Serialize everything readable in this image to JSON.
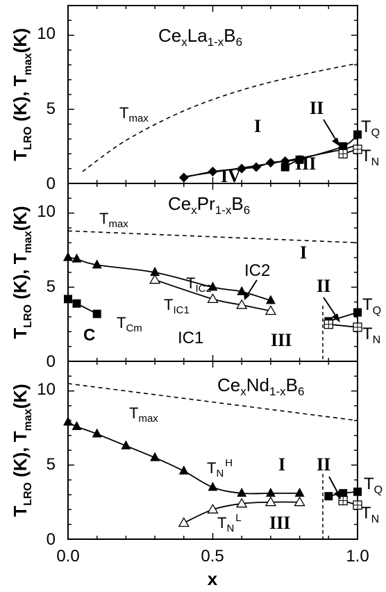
{
  "chart_data": [
    {
      "type": "line",
      "title": "CexLa1-xB6",
      "title_parts": {
        "base1": "Ce",
        "sub1": "x",
        "base2": "La",
        "sub2": "1-x",
        "base3": "B",
        "sub3": "6"
      },
      "ylabel": {
        "p1": "T",
        "s1": "LRO",
        "p2": " (K), T",
        "s2": "max",
        "p3": "(K)"
      },
      "ylim": [
        0,
        12
      ],
      "xlim": [
        0,
        1
      ],
      "yticks": [
        "0",
        "5",
        "10"
      ],
      "series": [
        {
          "name": "T_max",
          "style": "dashed",
          "x": [
            0.05,
            0.2,
            0.4,
            0.6,
            0.8,
            1.0
          ],
          "y": [
            0.8,
            2.9,
            4.9,
            6.3,
            7.3,
            8.1
          ]
        },
        {
          "name": "IV boundary",
          "style": "line",
          "x": [
            0.4,
            0.5,
            0.6,
            0.7,
            0.8,
            0.9,
            0.95,
            1.0
          ],
          "y": [
            0.45,
            0.75,
            1.05,
            1.35,
            1.7,
            2.1,
            2.3,
            2.6
          ]
        },
        {
          "name": "diamond",
          "marker": "diamond-filled",
          "x": [
            0.4,
            0.5,
            0.6,
            0.65,
            0.7,
            0.75,
            0.8
          ],
          "y": [
            0.4,
            0.8,
            1.0,
            1.1,
            1.4,
            1.5,
            1.6
          ]
        },
        {
          "name": "T_Q",
          "marker": "square-filled",
          "x": [
            0.75,
            0.8,
            0.95,
            1.0
          ],
          "y": [
            1.1,
            1.6,
            2.5,
            3.3
          ]
        },
        {
          "name": "T_N",
          "marker": "square-crossed",
          "x": [
            0.95,
            1.0
          ],
          "y": [
            2.0,
            2.3
          ]
        }
      ],
      "labels": {
        "tmax": "T",
        "tmax_sub": "max",
        "I": "I",
        "II": "II",
        "III": "III",
        "IV": "IV",
        "tq": "T",
        "tq_sub": "Q",
        "tn": "T",
        "tn_sub": "N"
      }
    },
    {
      "type": "line",
      "title": "CexPr1-xB6",
      "title_parts": {
        "base1": "Ce",
        "sub1": "x",
        "base2": "Pr",
        "sub2": "1-x",
        "base3": "B",
        "sub3": "6"
      },
      "ylabel": {
        "p1": "T",
        "s1": "LRO",
        "p2": " (K), T",
        "s2": "max",
        "p3": "(K)"
      },
      "ylim": [
        0,
        12
      ],
      "xlim": [
        0,
        1
      ],
      "yticks": [
        "0",
        "5",
        "10"
      ],
      "series": [
        {
          "name": "T_max",
          "style": "dashed",
          "x": [
            0.0,
            1.0
          ],
          "y": [
            8.8,
            8.0
          ]
        },
        {
          "name": "T_IC2",
          "marker": "triangle-filled",
          "x": [
            0.0,
            0.03,
            0.1,
            0.3,
            0.5,
            0.6,
            0.7
          ],
          "y": [
            7.0,
            6.9,
            6.5,
            6.0,
            5.0,
            4.7,
            4.1
          ]
        },
        {
          "name": "T_IC1",
          "marker": "triangle-open",
          "x": [
            0.3,
            0.5,
            0.6,
            0.7
          ],
          "y": [
            5.5,
            4.2,
            3.8,
            3.4
          ]
        },
        {
          "name": "T_Cm",
          "marker": "square-filled",
          "x": [
            0.0,
            0.03,
            0.1
          ],
          "y": [
            4.2,
            3.9,
            3.2
          ]
        },
        {
          "name": "T_Q",
          "marker": "square-filled",
          "x": [
            0.9,
            1.0
          ],
          "y": [
            2.7,
            3.3
          ]
        },
        {
          "name": "T_N",
          "marker": "square-crossed",
          "x": [
            0.9,
            1.0
          ],
          "y": [
            2.5,
            2.3
          ]
        }
      ],
      "labels": {
        "tmax": "T",
        "tmax_sub": "max",
        "tic2": "T",
        "tic2_sub": "IC2",
        "tic1": "T",
        "tic1_sub": "IC1",
        "ic2": "IC2",
        "ic1": "IC1",
        "C": "C",
        "tcm": "T",
        "tcm_sub": "Cm",
        "I": "I",
        "II": "II",
        "III": "III",
        "tq": "T",
        "tq_sub": "Q",
        "tn": "T",
        "tn_sub": "N"
      }
    },
    {
      "type": "line",
      "title": "CexNd1-xB6",
      "title_parts": {
        "base1": "Ce",
        "sub1": "x",
        "base2": "Nd",
        "sub2": "1-x",
        "base3": "B",
        "sub3": "6"
      },
      "ylabel": {
        "p1": "T",
        "s1": "LRO",
        "p2": " (K), T",
        "s2": "max",
        "p3": "(K)"
      },
      "xlabel": "x",
      "ylim": [
        0,
        12
      ],
      "xlim": [
        0,
        1
      ],
      "yticks": [
        "0",
        "5",
        "10"
      ],
      "xticks": [
        "0.0",
        "0.5",
        "1.0"
      ],
      "series": [
        {
          "name": "T_max",
          "style": "dashed",
          "x": [
            0.0,
            1.0
          ],
          "y": [
            10.5,
            8.0
          ]
        },
        {
          "name": "T_N^H",
          "marker": "triangle-filled",
          "x": [
            0.0,
            0.03,
            0.1,
            0.2,
            0.3,
            0.4,
            0.5,
            0.6,
            0.7,
            0.8
          ],
          "y": [
            7.9,
            7.6,
            7.1,
            6.3,
            5.5,
            4.6,
            3.5,
            3.1,
            3.1,
            3.1
          ]
        },
        {
          "name": "T_N^L",
          "marker": "triangle-open",
          "x": [
            0.4,
            0.5,
            0.6,
            0.7,
            0.8
          ],
          "y": [
            1.1,
            2.0,
            2.4,
            2.5,
            2.5
          ]
        },
        {
          "name": "T_Q",
          "marker": "square-filled",
          "x": [
            0.9,
            0.95,
            1.0
          ],
          "y": [
            2.9,
            3.1,
            3.2
          ]
        },
        {
          "name": "T_N",
          "marker": "square-crossed",
          "x": [
            0.95,
            1.0
          ],
          "y": [
            2.6,
            2.3
          ]
        }
      ],
      "labels": {
        "tmax": "T",
        "tmax_sub": "max",
        "tnh": "T",
        "tnh_sub": "N",
        "tnh_sup": "H",
        "tnl": "T",
        "tnl_sub": "N",
        "tnl_sup": "L",
        "I": "I",
        "II": "II",
        "III": "III",
        "tq": "T",
        "tq_sub": "Q",
        "tn": "T",
        "tn_sub": "N"
      }
    }
  ]
}
